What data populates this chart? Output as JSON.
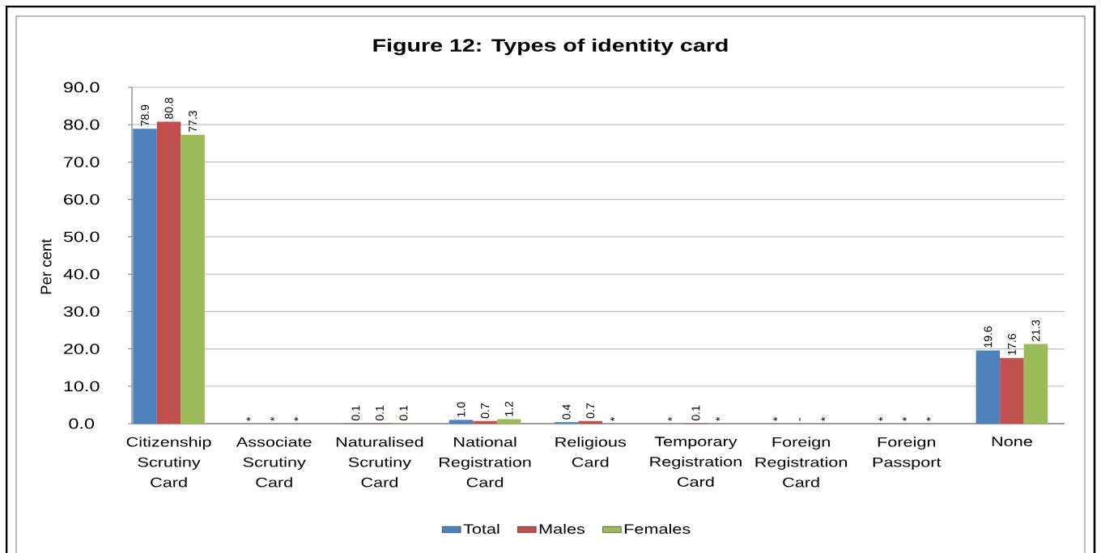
{
  "chart_data": {
    "type": "bar",
    "title": "Figure 12: Types of identity card",
    "ylabel": "Per cent",
    "categories": [
      "Citizenship Scrutiny Card",
      "Associate Scrutiny Card",
      "Naturalised Scrutiny Card",
      "National Registration Card",
      "Religious Card",
      "Temporary Registration Card",
      "Foreign Registration Card",
      "Foreign Passport",
      "None"
    ],
    "series": [
      {
        "name": "Total",
        "color": "#4f81bd",
        "values": [
          78.9,
          null,
          0.1,
          1.0,
          0.4,
          null,
          null,
          null,
          19.6
        ],
        "value_labels": [
          "78.9",
          "*",
          "0.1",
          "1.0",
          "0.4",
          "*",
          "*",
          "*",
          "19.6"
        ]
      },
      {
        "name": "Males",
        "color": "#c0504d",
        "values": [
          80.8,
          null,
          0.1,
          0.7,
          0.7,
          0.1,
          0,
          null,
          17.6
        ],
        "value_labels": [
          "80.8",
          "*",
          "0.1",
          "0.7",
          "0.7",
          "0.1",
          "-",
          "*",
          "17.6"
        ]
      },
      {
        "name": "Females",
        "color": "#9bbb59",
        "values": [
          77.3,
          null,
          0.1,
          1.2,
          null,
          null,
          null,
          null,
          21.3
        ],
        "value_labels": [
          "77.3",
          "*",
          "0.1",
          "1.2",
          "*",
          "*",
          "*",
          "*",
          "21.3"
        ]
      }
    ],
    "ylim": [
      0,
      90
    ],
    "yticks": [
      {
        "value": 0,
        "label": "0.0"
      },
      {
        "value": 10,
        "label": "10.0"
      },
      {
        "value": 20,
        "label": "20.0"
      },
      {
        "value": 30,
        "label": "30.0"
      },
      {
        "value": 40,
        "label": "40.0"
      },
      {
        "value": 50,
        "label": "50.0"
      },
      {
        "value": 60,
        "label": "60.0"
      },
      {
        "value": 70,
        "label": "70.0"
      },
      {
        "value": 80,
        "label": "80.0"
      },
      {
        "value": 90,
        "label": "90.0"
      }
    ],
    "grid": "y",
    "legend": "bottom"
  }
}
